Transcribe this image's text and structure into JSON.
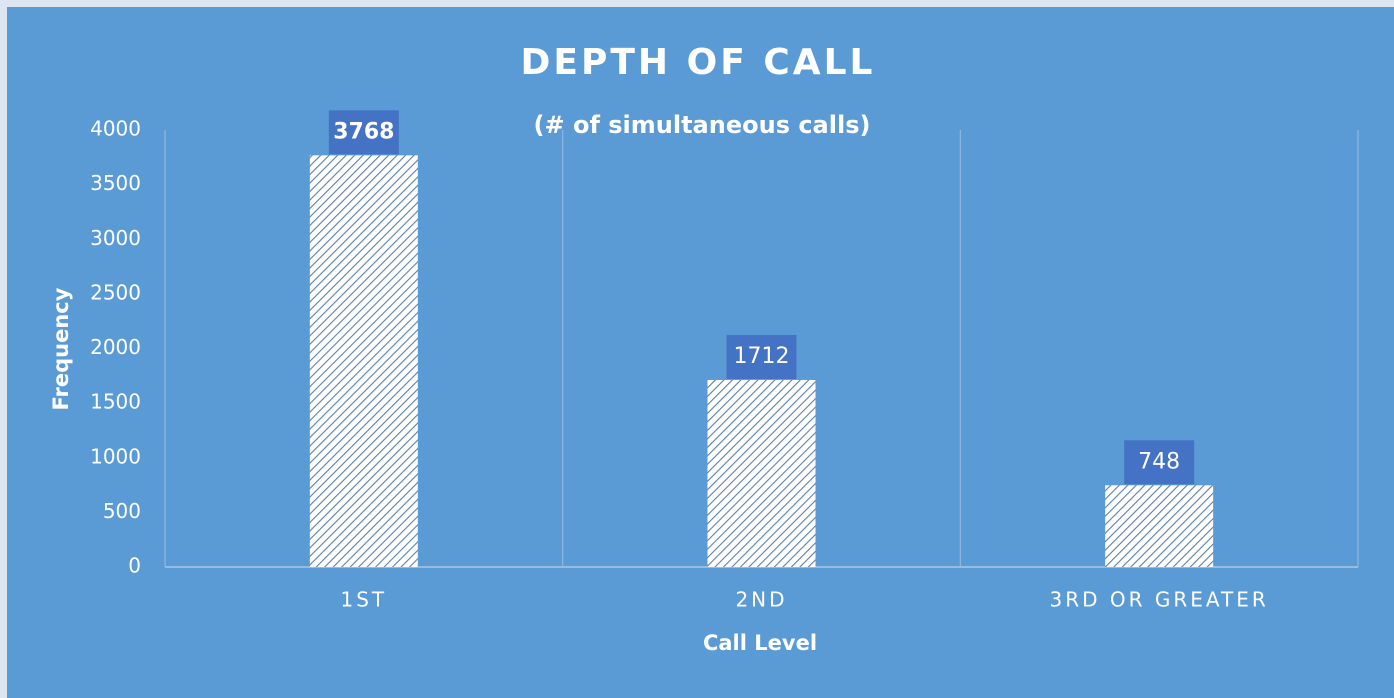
{
  "chart_data": {
    "type": "bar",
    "title": "DEPTH OF CALL",
    "subtitle": "(# of simultaneous calls)",
    "x_label": "Call Level",
    "y_label": "Frequency",
    "categories": [
      "1ST",
      "2ND",
      "3RD OR GREATER"
    ],
    "values": [
      3768,
      1712,
      748
    ],
    "color": "#ffffff",
    "label_color": "#4472c4",
    "ylim": [
      0,
      4000
    ],
    "yticks": [
      0,
      500,
      1000,
      1500,
      2000,
      2500,
      3000,
      3500,
      4000
    ],
    "grid": true
  }
}
